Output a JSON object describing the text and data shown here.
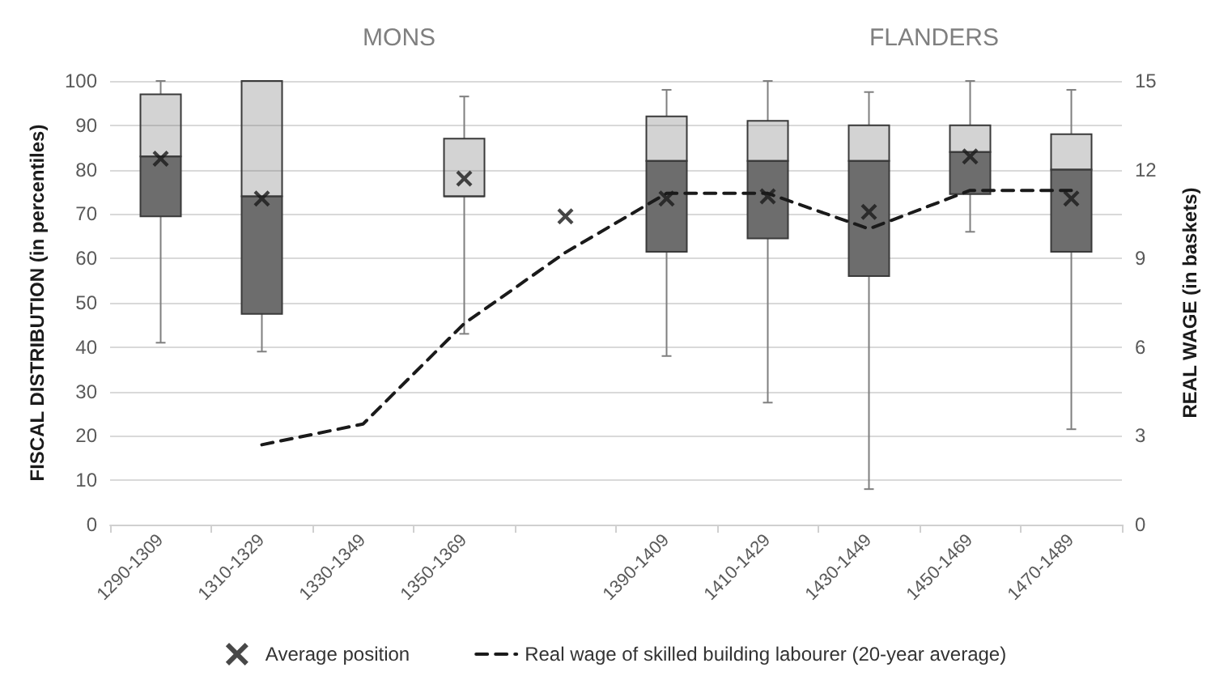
{
  "chart_data": {
    "type": "box",
    "categories": [
      "1290-1309",
      "1310-1329",
      "1330-1349",
      "1350-1369",
      null,
      "1390-1409",
      "1410-1429",
      "1430-1449",
      "1450-1469",
      "1470-1489"
    ],
    "ylabel": "FISCAL DISTRIBUTION (in percentiles)",
    "y2label": "REAL WAGE (in baskets)",
    "ylim": [
      0,
      100
    ],
    "yticks": [
      0,
      10,
      20,
      30,
      40,
      50,
      60,
      70,
      80,
      90,
      100
    ],
    "y2lim": [
      0,
      15
    ],
    "y2ticks": [
      0,
      3,
      6,
      9,
      12,
      15
    ],
    "annotations": [
      "MONS",
      "FLANDERS"
    ],
    "grid": "y",
    "legend": "bottom",
    "series": [
      {
        "color": "#6d6d6d",
        "boxes": [
          {
            "low": 41,
            "q1": 69.5,
            "median": 83,
            "q3": 97,
            "high": 100
          },
          {
            "low": 39,
            "q1": 47.5,
            "median": 74,
            "q3": 100,
            "high": 100
          },
          null,
          {
            "low": 43,
            "q1": 74,
            "median": 74,
            "q3": 87,
            "high": 96.5
          },
          null,
          {
            "low": 38,
            "q1": 61.5,
            "median": 82,
            "q3": 92,
            "high": 98
          },
          {
            "low": 27.5,
            "q1": 64.5,
            "median": 82,
            "q3": 91,
            "high": 100
          },
          {
            "low": 8,
            "q1": 56,
            "median": 82,
            "q3": 90,
            "high": 97.5
          },
          {
            "low": 66,
            "q1": 74.5,
            "median": 84,
            "q3": 90,
            "high": 100
          },
          {
            "low": 21.5,
            "q1": 61.5,
            "median": 80,
            "q3": 88,
            "high": 98
          }
        ]
      },
      {
        "type": "scatter",
        "name": "Average position",
        "color": "#1a1a1a",
        "marker": "cross",
        "values": [
          82.5,
          73.5,
          null,
          78,
          69.5,
          73.5,
          74,
          70.5,
          83,
          73.5
        ]
      },
      {
        "type": "line",
        "name": "Real wage of skilled building labourer (20-year average)",
        "color": "#1a1a1a",
        "axis": "y2",
        "line_style": "dashed",
        "marker": "none",
        "values": [
          null,
          2.7,
          3.4,
          6.8,
          9.2,
          11.2,
          11.2,
          10,
          11.3,
          11.3
        ]
      }
    ]
  }
}
